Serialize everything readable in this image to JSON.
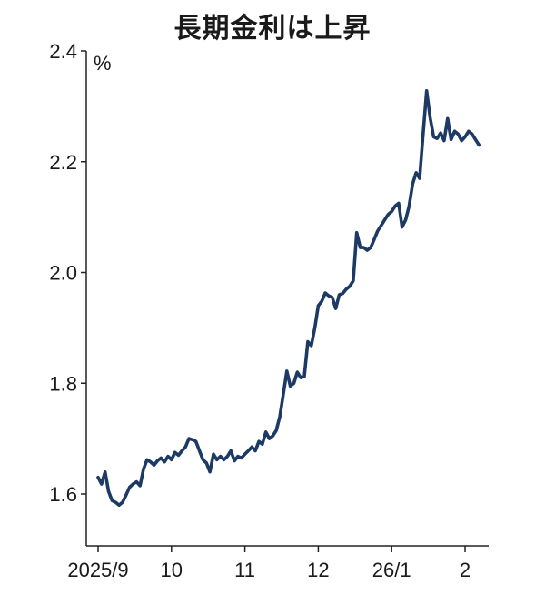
{
  "chart_data": {
    "type": "line",
    "title": "長期金利は上昇",
    "ylabel": "%",
    "xlabel": "",
    "ylim": [
      1.5,
      2.4
    ],
    "y_ticks": [
      1.6,
      1.8,
      2.0,
      2.2,
      2.4
    ],
    "y_tick_labels": [
      "1.6",
      "1.8",
      "2.0",
      "2.2",
      "2.4"
    ],
    "x_tick_labels": [
      "2025/9",
      "10",
      "11",
      "12",
      "26/1",
      "2"
    ],
    "x_tick_positions": [
      0,
      21,
      42,
      63,
      84,
      105
    ],
    "xlim": [
      -2,
      111
    ],
    "line_color": "#1c3a63",
    "series": [
      {
        "name": "長期金利",
        "x": [
          0,
          1,
          2,
          3,
          4,
          5,
          6,
          7,
          8,
          9,
          10,
          11,
          12,
          13,
          14,
          15,
          16,
          17,
          18,
          19,
          20,
          21,
          22,
          23,
          24,
          25,
          26,
          27,
          28,
          29,
          30,
          31,
          32,
          33,
          34,
          35,
          36,
          37,
          38,
          39,
          40,
          41,
          42,
          43,
          44,
          45,
          46,
          47,
          48,
          49,
          50,
          51,
          52,
          53,
          54,
          55,
          56,
          57,
          58,
          59,
          60,
          61,
          62,
          63,
          64,
          65,
          66,
          67,
          68,
          69,
          70,
          71,
          72,
          73,
          74,
          75,
          76,
          77,
          78,
          79,
          80,
          81,
          82,
          83,
          84,
          85,
          86,
          87,
          88,
          89,
          90,
          91,
          92,
          93,
          94,
          95,
          96,
          97,
          98,
          99,
          100,
          101,
          102,
          103,
          104,
          105,
          106,
          107,
          108,
          109
        ],
        "values": [
          1.63,
          1.618,
          1.64,
          1.605,
          1.588,
          1.585,
          1.58,
          1.585,
          1.598,
          1.612,
          1.618,
          1.622,
          1.615,
          1.645,
          1.662,
          1.658,
          1.652,
          1.66,
          1.665,
          1.658,
          1.668,
          1.662,
          1.675,
          1.67,
          1.678,
          1.685,
          1.7,
          1.698,
          1.695,
          1.678,
          1.662,
          1.656,
          1.64,
          1.672,
          1.662,
          1.668,
          1.662,
          1.668,
          1.678,
          1.66,
          1.668,
          1.665,
          1.672,
          1.678,
          1.685,
          1.678,
          1.695,
          1.69,
          1.712,
          1.7,
          1.705,
          1.715,
          1.74,
          1.78,
          1.822,
          1.795,
          1.8,
          1.82,
          1.81,
          1.812,
          1.875,
          1.868,
          1.9,
          1.94,
          1.948,
          1.963,
          1.958,
          1.955,
          1.935,
          1.96,
          1.962,
          1.97,
          1.975,
          1.985,
          2.072,
          2.045,
          2.045,
          2.04,
          2.045,
          2.06,
          2.075,
          2.085,
          2.095,
          2.105,
          2.11,
          2.12,
          2.125,
          2.082,
          2.095,
          2.12,
          2.16,
          2.18,
          2.17,
          2.25,
          2.328,
          2.28,
          2.245,
          2.242,
          2.252,
          2.238,
          2.278,
          2.24,
          2.255,
          2.25,
          2.238,
          2.245,
          2.255,
          2.25,
          2.24,
          2.23
        ]
      }
    ]
  }
}
